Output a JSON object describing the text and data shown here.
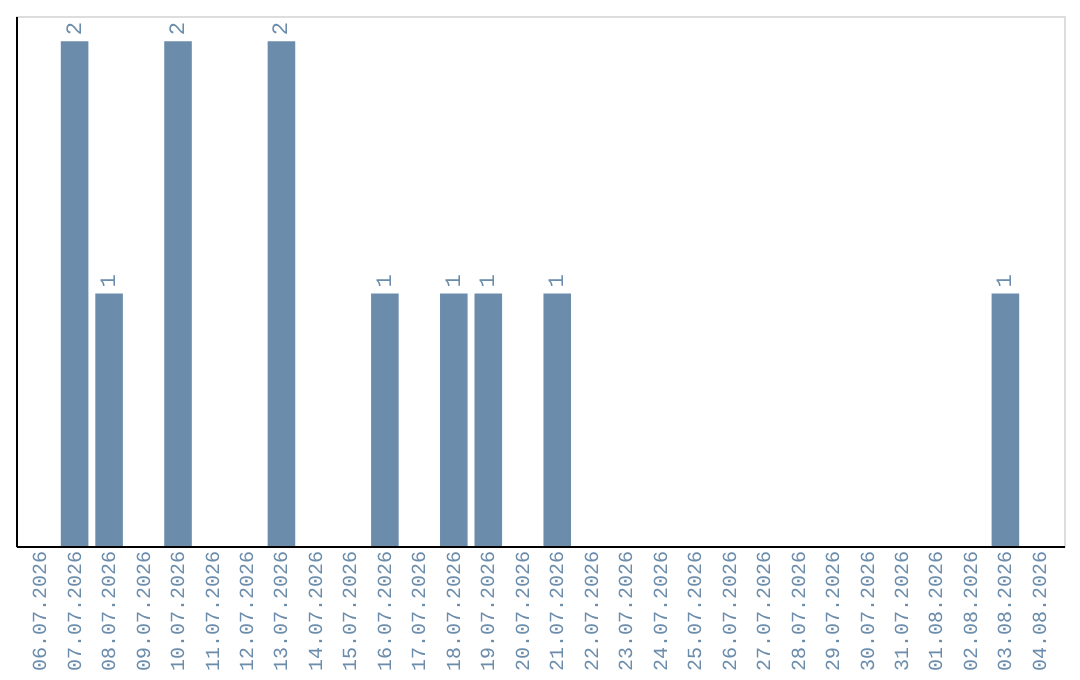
{
  "chart_data": {
    "type": "bar",
    "categories": [
      "06.07.2026",
      "07.07.2026",
      "08.07.2026",
      "09.07.2026",
      "10.07.2026",
      "11.07.2026",
      "12.07.2026",
      "13.07.2026",
      "14.07.2026",
      "15.07.2026",
      "16.07.2026",
      "17.07.2026",
      "18.07.2026",
      "19.07.2026",
      "20.07.2026",
      "21.07.2026",
      "22.07.2026",
      "23.07.2026",
      "24.07.2026",
      "25.07.2026",
      "26.07.2026",
      "27.07.2026",
      "28.07.2026",
      "29.07.2026",
      "30.07.2026",
      "31.07.2026",
      "01.08.2026",
      "02.08.2026",
      "03.08.2026",
      "04.08.2026"
    ],
    "values": [
      0,
      2,
      1,
      0,
      2,
      0,
      0,
      2,
      0,
      0,
      1,
      0,
      1,
      1,
      0,
      1,
      0,
      0,
      0,
      0,
      0,
      0,
      0,
      0,
      0,
      0,
      0,
      0,
      1,
      0
    ],
    "value_labels": [
      null,
      "2",
      "1",
      null,
      "2",
      null,
      null,
      "2",
      null,
      null,
      "1",
      null,
      "1",
      "1",
      null,
      "1",
      null,
      null,
      null,
      null,
      null,
      null,
      null,
      null,
      null,
      null,
      null,
      null,
      "1",
      null
    ],
    "color": "#6b8cab",
    "tick_labels": "x",
    "grid": false
  }
}
